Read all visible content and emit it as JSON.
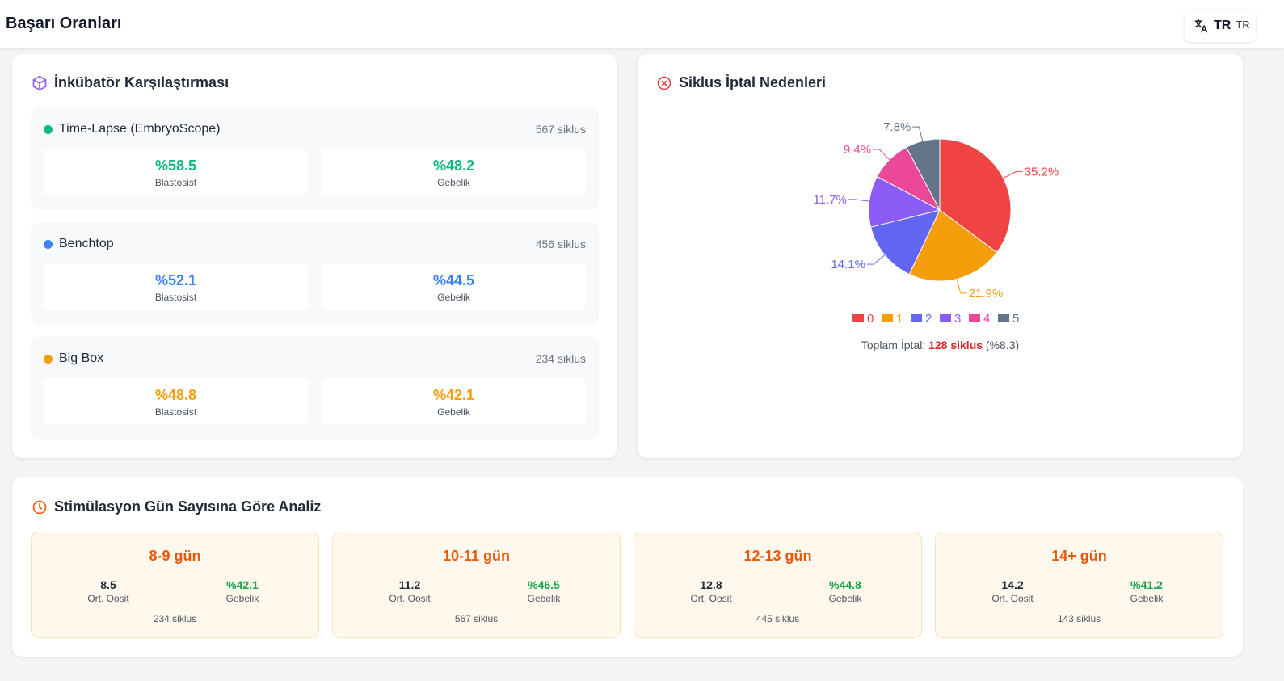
{
  "header": {
    "title": "Başarı Oranları",
    "language": "TR",
    "language_small": "TR"
  },
  "incubator": {
    "title": "İnkübatör Karşılaştırması",
    "groups": [
      {
        "name": "Time-Lapse (EmbryoScope)",
        "cycles": "567 siklus",
        "color": "#10b981",
        "blast_val": "%58.5",
        "blast_label": "Blastosist",
        "preg_val": "%48.2",
        "preg_label": "Gebelik"
      },
      {
        "name": "Benchtop",
        "cycles": "456 siklus",
        "color": "#3b82f6",
        "blast_val": "%52.1",
        "blast_label": "Blastosist",
        "preg_val": "%44.5",
        "preg_label": "Gebelik"
      },
      {
        "name": "Big Box",
        "cycles": "234 siklus",
        "color": "#f59e0b",
        "blast_val": "%48.8",
        "blast_label": "Blastosist",
        "preg_val": "%42.1",
        "preg_label": "Gebelik"
      }
    ]
  },
  "cancel": {
    "title": "Siklus İptal Nedenleri",
    "total_prefix": "Toplam İptal:",
    "total_count": "128 siklus",
    "total_pct": "(%8.3)"
  },
  "chart_data": {
    "type": "pie",
    "categories": [
      "0",
      "1",
      "2",
      "3",
      "4",
      "5"
    ],
    "values": [
      35.2,
      21.9,
      14.1,
      11.7,
      9.4,
      7.8
    ],
    "labels": [
      "35.2%",
      "21.9%",
      "14.1%",
      "11.7%",
      "9.4%",
      "7.8%"
    ],
    "colors": [
      "#ef4444",
      "#f59e0b",
      "#6366f1",
      "#8b5cf6",
      "#ec4899",
      "#64748b"
    ],
    "legend": "bottom"
  },
  "stimulation": {
    "title": "Stimülasyon Gün Sayısına Göre Analiz",
    "items": [
      {
        "range": "8-9 gün",
        "oocyte": "8.5",
        "oocyte_label": "Ort. Oosit",
        "preg": "%42.1",
        "preg_label": "Gebelik",
        "cycles": "234 siklus"
      },
      {
        "range": "10-11 gün",
        "oocyte": "11.2",
        "oocyte_label": "Ort. Oosit",
        "preg": "%46.5",
        "preg_label": "Gebelik",
        "cycles": "567 siklus"
      },
      {
        "range": "12-13 gün",
        "oocyte": "12.8",
        "oocyte_label": "Ort. Oosit",
        "preg": "%44.8",
        "preg_label": "Gebelik",
        "cycles": "445 siklus"
      },
      {
        "range": "14+ gün",
        "oocyte": "14.2",
        "oocyte_label": "Ort. Oosit",
        "preg": "%41.2",
        "preg_label": "Gebelik",
        "cycles": "143 siklus"
      }
    ]
  }
}
